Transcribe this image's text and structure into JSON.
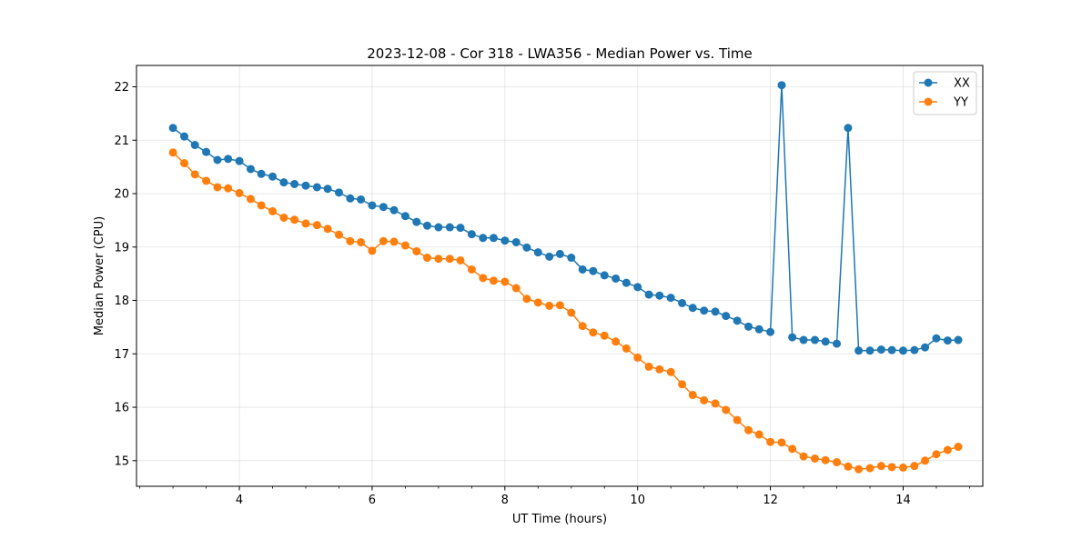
{
  "chart_data": {
    "type": "line",
    "title": "2023-12-08 - Cor 318 - LWA356 - Median Power vs. Time",
    "xlabel": "UT Time (hours)",
    "ylabel": "Median Power (CPU)",
    "xlim": [
      2.45,
      15.2
    ],
    "ylim": [
      14.52,
      22.4
    ],
    "xticks": [
      4,
      6,
      8,
      10,
      12,
      14
    ],
    "xtick_labels": [
      "4",
      "6",
      "8",
      "10",
      "12",
      "14"
    ],
    "yticks": [
      15,
      16,
      17,
      18,
      19,
      20,
      21,
      22
    ],
    "ytick_labels": [
      "15",
      "16",
      "17",
      "18",
      "19",
      "20",
      "21",
      "22"
    ],
    "grid": true,
    "legend_position": "top-right",
    "x": [
      3.0,
      3.17,
      3.33,
      3.5,
      3.67,
      3.83,
      4.0,
      4.17,
      4.33,
      4.5,
      4.67,
      4.83,
      5.0,
      5.17,
      5.33,
      5.5,
      5.67,
      5.83,
      6.0,
      6.17,
      6.33,
      6.5,
      6.67,
      6.83,
      7.0,
      7.17,
      7.33,
      7.5,
      7.67,
      7.83,
      8.0,
      8.17,
      8.33,
      8.5,
      8.67,
      8.83,
      9.0,
      9.17,
      9.33,
      9.5,
      9.67,
      9.83,
      10.0,
      10.17,
      10.33,
      10.5,
      10.67,
      10.83,
      11.0,
      11.17,
      11.33,
      11.5,
      11.67,
      11.83,
      12.0,
      12.17,
      12.33,
      12.5,
      12.67,
      12.83,
      13.0,
      13.17,
      13.33,
      13.5,
      13.67,
      13.83,
      14.0,
      14.17,
      14.33,
      14.5,
      14.67,
      14.83
    ],
    "series": [
      {
        "name": "XX",
        "color": "#1f77b4",
        "values": [
          21.23,
          21.07,
          20.91,
          20.78,
          20.63,
          20.65,
          20.61,
          20.46,
          20.37,
          20.32,
          20.21,
          20.18,
          20.15,
          20.12,
          20.09,
          20.02,
          19.91,
          19.89,
          19.78,
          19.75,
          19.69,
          19.58,
          19.47,
          19.4,
          19.37,
          19.37,
          19.36,
          19.24,
          19.17,
          19.17,
          19.12,
          19.09,
          18.99,
          18.9,
          18.82,
          18.87,
          18.8,
          18.58,
          18.55,
          18.47,
          18.41,
          18.33,
          18.25,
          18.11,
          18.09,
          18.05,
          17.95,
          17.86,
          17.81,
          17.79,
          17.71,
          17.62,
          17.51,
          17.46,
          17.41,
          22.03,
          17.31,
          17.26,
          17.26,
          17.23,
          17.19,
          21.23,
          17.06,
          17.06,
          17.08,
          17.07,
          17.06,
          17.07,
          17.12,
          17.29,
          17.25,
          17.26
        ]
      },
      {
        "name": "YY",
        "color": "#ff7f0e",
        "values": [
          20.77,
          20.57,
          20.36,
          20.24,
          20.12,
          20.1,
          20.01,
          19.9,
          19.78,
          19.67,
          19.55,
          19.51,
          19.44,
          19.41,
          19.34,
          19.23,
          19.11,
          19.09,
          18.93,
          19.11,
          19.1,
          19.03,
          18.92,
          18.8,
          18.78,
          18.78,
          18.75,
          18.58,
          18.42,
          18.37,
          18.35,
          18.23,
          18.03,
          17.96,
          17.9,
          17.91,
          17.77,
          17.52,
          17.4,
          17.34,
          17.23,
          17.1,
          16.93,
          16.76,
          16.71,
          16.66,
          16.43,
          16.23,
          16.13,
          16.07,
          15.95,
          15.76,
          15.57,
          15.49,
          15.35,
          15.34,
          15.22,
          15.08,
          15.04,
          15.01,
          14.97,
          14.89,
          14.84,
          14.86,
          14.9,
          14.88,
          14.87,
          14.9,
          15.0,
          15.12,
          15.2,
          15.26
        ]
      }
    ]
  }
}
